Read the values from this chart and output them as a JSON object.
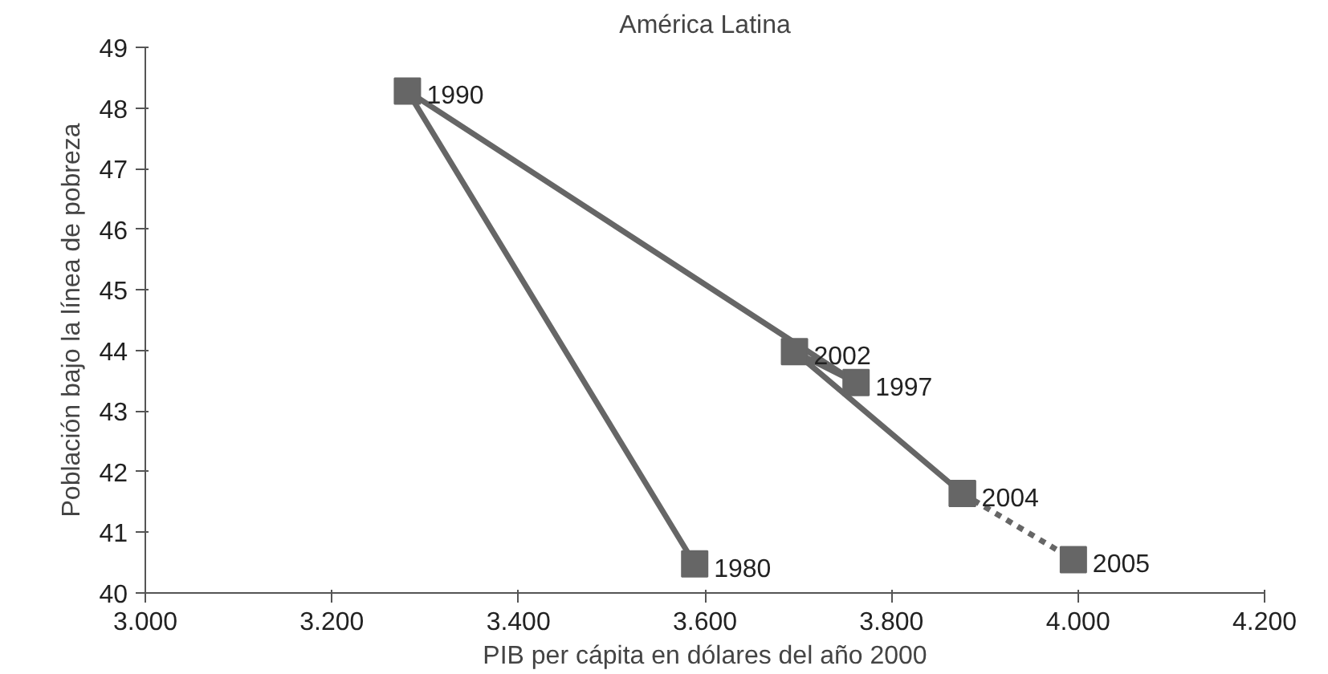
{
  "chart_data": {
    "type": "line",
    "title": "América Latina",
    "xlabel": "PIB per cápita en dólares del año 2000",
    "ylabel": "Población bajo la línea de pobreza",
    "series": [
      {
        "color": "#666666",
        "x": [
          3589,
          3281,
          3762,
          3696,
          3876
        ],
        "values": [
          40.48,
          48.28,
          43.47,
          43.98,
          41.64
        ],
        "line_style": "solid",
        "marker": "square"
      },
      {
        "color": "#666666",
        "x": [
          3876,
          3995
        ],
        "values": [
          41.64,
          40.55
        ],
        "line_style": "dotted",
        "marker": "square"
      }
    ],
    "annotations": [
      {
        "text": "1980",
        "x": 3589,
        "y": 40.48
      },
      {
        "text": "1990",
        "x": 3281,
        "y": 48.28
      },
      {
        "text": "1997",
        "x": 3762,
        "y": 43.47
      },
      {
        "text": "2002",
        "x": 3696,
        "y": 43.98
      },
      {
        "text": "2004",
        "x": 3876,
        "y": 41.64
      },
      {
        "text": "2005",
        "x": 3995,
        "y": 40.55
      }
    ],
    "xlim": [
      3000,
      4200
    ],
    "xticks": [
      {
        "value": 3000,
        "label": "3.000"
      },
      {
        "value": 3200,
        "label": "3.200"
      },
      {
        "value": 3400,
        "label": "3.400"
      },
      {
        "value": 3600,
        "label": "3.600"
      },
      {
        "value": 3800,
        "label": "3.800"
      },
      {
        "value": 4000,
        "label": "4.000"
      },
      {
        "value": 4200,
        "label": "4.200"
      }
    ],
    "ylim": [
      40,
      49
    ],
    "yticks": [
      40,
      41,
      42,
      43,
      44,
      45,
      46,
      47,
      48,
      49
    ],
    "grid": false
  }
}
